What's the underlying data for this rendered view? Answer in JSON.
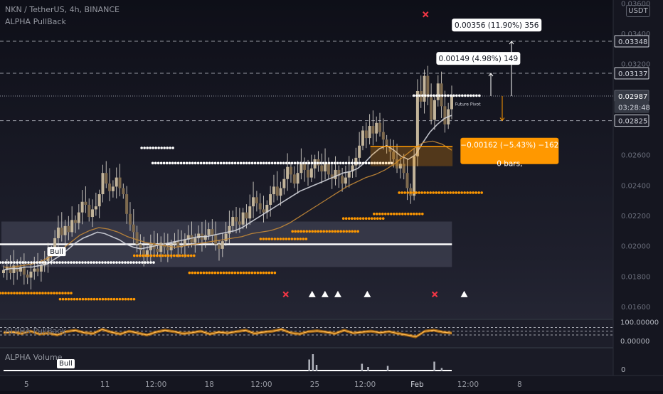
{
  "header": {
    "symbol_line": "NKN / TetherUS, 4h, BINANCE",
    "indicator_name": "ALPHA PullBack",
    "currency_button": "USDT"
  },
  "panes": {
    "oscillator_label": "ALPHA PullBack",
    "volume_label": "ALPHA Volume",
    "volume_bull_label": "Bull"
  },
  "chart_data": {
    "type": "candlestick",
    "symbol": "NKN / TetherUS",
    "timeframe": "4h",
    "exchange": "BINANCE",
    "ylim": [
      0.0152,
      0.0362
    ],
    "price_ticks": [
      "0.03600",
      "0.03400",
      "0.03200",
      "0.02600",
      "0.02400",
      "0.02200",
      "0.02000",
      "0.01800",
      "0.01600"
    ],
    "price_tick_values": [
      0.036,
      0.034,
      0.032,
      0.026,
      0.024,
      0.022,
      0.02,
      0.018,
      0.016
    ],
    "x_ticks": [
      {
        "label": "5",
        "t": 0.027
      },
      {
        "label": "11",
        "t": 0.155
      },
      {
        "label": "12:00",
        "t": 0.238
      },
      {
        "label": "18",
        "t": 0.325
      },
      {
        "label": "12:00",
        "t": 0.41
      },
      {
        "label": "25",
        "t": 0.497
      },
      {
        "label": "12:00",
        "t": 0.579
      },
      {
        "label": "Feb",
        "t": 0.664
      },
      {
        "label": "12:00",
        "t": 0.747
      },
      {
        "label": "8",
        "t": 0.831
      }
    ],
    "price_labels": [
      {
        "text": "0.03348",
        "value": 0.03348,
        "style": "outline"
      },
      {
        "text": "0.03137",
        "value": 0.03137,
        "style": "outline"
      },
      {
        "text": "0.02987",
        "value": 0.02987,
        "style": "current"
      },
      {
        "text": "03:28:48",
        "value": 0.02915,
        "style": "countdown"
      },
      {
        "text": "0.02825",
        "value": 0.02825,
        "style": "outline"
      }
    ],
    "levels": [
      {
        "value": 0.03348,
        "style": "dashed"
      },
      {
        "value": 0.03137,
        "style": "dashed"
      },
      {
        "value": 0.02987,
        "style": "dotted"
      },
      {
        "value": 0.02825,
        "style": "dashed"
      }
    ],
    "candles_close": [
      0.0184,
      0.0186,
      0.0182,
      0.0187,
      0.0183,
      0.0186,
      0.0181,
      0.0179,
      0.0183,
      0.0185,
      0.0183,
      0.0187,
      0.019,
      0.0193,
      0.0197,
      0.0205,
      0.0212,
      0.0207,
      0.0213,
      0.0209,
      0.0217,
      0.0215,
      0.0222,
      0.0229,
      0.0227,
      0.0219,
      0.0224,
      0.0226,
      0.0234,
      0.0248,
      0.0241,
      0.0236,
      0.0239,
      0.0245,
      0.0238,
      0.0234,
      0.0221,
      0.0214,
      0.0209,
      0.0201,
      0.0197,
      0.0193,
      0.0197,
      0.0202,
      0.0198,
      0.0196,
      0.0202,
      0.0199,
      0.0197,
      0.0201,
      0.0203,
      0.0199,
      0.02,
      0.0204,
      0.0207,
      0.0202,
      0.0205,
      0.0208,
      0.0204,
      0.0207,
      0.0211,
      0.0207,
      0.0201,
      0.0198,
      0.0203,
      0.0208,
      0.0213,
      0.0219,
      0.0216,
      0.0214,
      0.0222,
      0.0218,
      0.0226,
      0.0232,
      0.0228,
      0.0224,
      0.0222,
      0.0227,
      0.0234,
      0.0239,
      0.0233,
      0.0238,
      0.0244,
      0.0252,
      0.0247,
      0.0241,
      0.0248,
      0.0254,
      0.025,
      0.0245,
      0.0251,
      0.0257,
      0.0253,
      0.0249,
      0.0254,
      0.0247,
      0.0244,
      0.025,
      0.0246,
      0.0241,
      0.0245,
      0.0249,
      0.0253,
      0.0258,
      0.0266,
      0.0276,
      0.0271,
      0.0279,
      0.0274,
      0.0281,
      0.0275,
      0.027,
      0.0265,
      0.0262,
      0.0257,
      0.0251,
      0.0254,
      0.0248,
      0.0238,
      0.0233,
      0.0259,
      0.0302,
      0.0295,
      0.0312,
      0.0298,
      0.0283,
      0.0296,
      0.0307,
      0.0292,
      0.028,
      0.029,
      0.0299
    ],
    "ema_line": [
      0.0184,
      0.0185,
      0.0185,
      0.0186,
      0.0186,
      0.0187,
      0.0188,
      0.0191,
      0.0194,
      0.0198,
      0.0202,
      0.0205,
      0.0207,
      0.0209,
      0.0208,
      0.0206,
      0.0204,
      0.0201,
      0.0199,
      0.0198,
      0.0199,
      0.02,
      0.0201,
      0.0202,
      0.0203,
      0.0204,
      0.0205,
      0.0206,
      0.0206,
      0.0207,
      0.0208,
      0.0209,
      0.021,
      0.0212,
      0.0215,
      0.0218,
      0.0221,
      0.0224,
      0.0227,
      0.023,
      0.0233,
      0.0236,
      0.0238,
      0.024,
      0.0242,
      0.0244,
      0.0246,
      0.0248,
      0.0249,
      0.0251,
      0.0255,
      0.026,
      0.0264,
      0.0266,
      0.0263,
      0.0259,
      0.0257,
      0.026,
      0.0268,
      0.0275,
      0.028,
      0.0284,
      0.0286
    ],
    "ema_color": "#d1d4dc",
    "sma_line": [
      0.0186,
      0.0186,
      0.0187,
      0.0188,
      0.019,
      0.0193,
      0.0197,
      0.0202,
      0.0207,
      0.021,
      0.0212,
      0.0211,
      0.0209,
      0.0206,
      0.0204,
      0.0202,
      0.0201,
      0.02,
      0.0199,
      0.02,
      0.0201,
      0.0202,
      0.0203,
      0.0204,
      0.0205,
      0.0206,
      0.0208,
      0.0209,
      0.021,
      0.0212,
      0.0215,
      0.0219,
      0.0223,
      0.0227,
      0.0231,
      0.0235,
      0.0239,
      0.0242,
      0.0245,
      0.0247,
      0.025,
      0.0254,
      0.0259,
      0.0264,
      0.0268,
      0.0269,
      0.0267,
      0.0263
    ],
    "sma_color": "#c58a37",
    "supply_zone": {
      "top": 0.0216,
      "bottom": 0.0186
    },
    "support_line": 0.0201,
    "white_dots": [
      {
        "value": 0.02645,
        "t0": 0.231,
        "t1": 0.283
      },
      {
        "value": 0.02545,
        "t0": 0.249,
        "t1": 0.639
      },
      {
        "value": 0.0189,
        "t0": 0.0,
        "t1": 0.252
      },
      {
        "value": 0.0299,
        "t0": 0.675,
        "t1": 0.785
      }
    ],
    "orange_dots": [
      {
        "value": 0.0235,
        "t0": 0.651,
        "t1": 0.789
      },
      {
        "value": 0.0221,
        "t0": 0.61,
        "t1": 0.69
      },
      {
        "value": 0.0218,
        "t0": 0.56,
        "t1": 0.625
      },
      {
        "value": 0.02095,
        "t0": 0.477,
        "t1": 0.588
      },
      {
        "value": 0.02045,
        "t0": 0.425,
        "t1": 0.5
      },
      {
        "value": 0.01935,
        "t0": 0.219,
        "t1": 0.317
      },
      {
        "value": 0.01822,
        "t0": 0.309,
        "t1": 0.451
      },
      {
        "value": 0.01688,
        "t0": 0.0,
        "t1": 0.12
      },
      {
        "value": 0.01648,
        "t0": 0.098,
        "t1": 0.221
      }
    ],
    "signals": [
      {
        "kind": "cross",
        "t": 0.466,
        "value": 0.0168
      },
      {
        "kind": "triangle",
        "t": 0.509,
        "value": 0.0168
      },
      {
        "kind": "triangle",
        "t": 0.53,
        "value": 0.0168
      },
      {
        "kind": "triangle",
        "t": 0.551,
        "value": 0.0168
      },
      {
        "kind": "triangle",
        "t": 0.599,
        "value": 0.0168
      },
      {
        "kind": "cross",
        "t": 0.709,
        "value": 0.0168
      },
      {
        "kind": "triangle",
        "t": 0.757,
        "value": 0.0168
      },
      {
        "kind": "cross",
        "t": 0.694,
        "value": 0.03525
      }
    ],
    "bull_label": {
      "text": "Bull",
      "t": 0.105,
      "value": 0.0196
    },
    "future_pivot": {
      "text": "Future Pivot",
      "t": 0.763,
      "value": 0.02925
    },
    "measure_boxes": [
      {
        "text": "0.00356 (11.90%) 356",
        "t": 0.81,
        "value": 0.03455,
        "theme": "light"
      },
      {
        "text": "0.00149 (4.98%) 149",
        "t": 0.78,
        "value": 0.03235,
        "theme": "light"
      },
      {
        "text": "−0.00162 (−5.43%) −162",
        "t": 0.831,
        "value": 0.02665,
        "theme": "orange"
      },
      {
        "text": "0 bars,",
        "t": 0.831,
        "value": 0.02545,
        "theme": "orange"
      }
    ],
    "accent_colors": {
      "orange": "#ff9800",
      "cross": "#f23645",
      "white": "#ffffff",
      "dashed_level": "#9598a1"
    },
    "oscillator": {
      "ticks": [
        "100.00000",
        "0.00000"
      ],
      "tick_values": [
        100,
        0
      ],
      "ylim": [
        -35,
        110
      ],
      "levels": [
        70,
        50,
        30
      ],
      "values": [
        42,
        45,
        38,
        50,
        35,
        40,
        30,
        48,
        55,
        42,
        38,
        60,
        45,
        35,
        50,
        40,
        30,
        45,
        55,
        48,
        38,
        42,
        50,
        35,
        45,
        40,
        48,
        55,
        38,
        45,
        50,
        60,
        42,
        35,
        48,
        52,
        45,
        38,
        55,
        40,
        45,
        50,
        42,
        48,
        38,
        30,
        20,
        50,
        55,
        45,
        40
      ]
    },
    "volume": {
      "ticks": [
        "0"
      ],
      "tick_values": [
        0
      ],
      "ylim": [
        0,
        100
      ],
      "spikes": [
        {
          "t": 0.504,
          "v": 55
        },
        {
          "t": 0.51,
          "v": 80
        },
        {
          "t": 0.516,
          "v": 30
        },
        {
          "t": 0.59,
          "v": 35
        },
        {
          "t": 0.6,
          "v": 20
        },
        {
          "t": 0.632,
          "v": 25
        },
        {
          "t": 0.708,
          "v": 45
        },
        {
          "t": 0.72,
          "v": 15
        }
      ]
    }
  }
}
